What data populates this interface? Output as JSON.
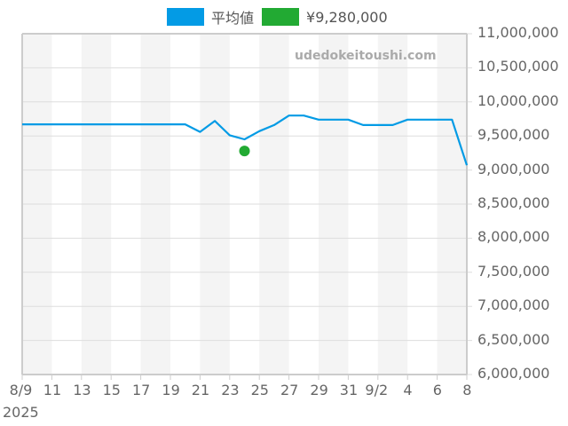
{
  "legend": [
    {
      "label": "平均値",
      "color": "#039be5"
    },
    {
      "label": "¥9,280,000",
      "color": "#22aa33"
    }
  ],
  "watermark": "udedokeitoushi.com",
  "colors": {
    "line": "#039be5",
    "point": "#22aa33",
    "stripe": "#f4f4f4",
    "grid": "#dddddd",
    "axis": "#cccccc"
  },
  "chart_data": {
    "type": "line",
    "title": "",
    "xlabel": "",
    "ylabel": "",
    "year_label": "2025",
    "x_tick_labels": [
      "8/9",
      "11",
      "13",
      "15",
      "17",
      "19",
      "21",
      "23",
      "25",
      "27",
      "29",
      "31",
      "9/2",
      "4",
      "6",
      "8"
    ],
    "y_tick_labels": [
      "11,000,000",
      "10,500,000",
      "10,000,000",
      "9,500,000",
      "9,000,000",
      "8,500,000",
      "8,000,000",
      "7,500,000",
      "7,000,000",
      "6,500,000",
      "6,000,000"
    ],
    "ylim": [
      6000000,
      11000000
    ],
    "grid": true,
    "legend_position": "top",
    "x": [
      "8/9",
      "8/10",
      "8/11",
      "8/12",
      "8/13",
      "8/14",
      "8/15",
      "8/16",
      "8/17",
      "8/18",
      "8/19",
      "8/20",
      "8/21",
      "8/22",
      "8/23",
      "8/24",
      "8/25",
      "8/26",
      "8/27",
      "8/28",
      "8/29",
      "8/30",
      "8/31",
      "9/1",
      "9/2",
      "9/3",
      "9/4",
      "9/5",
      "9/6",
      "9/7",
      "9/8"
    ],
    "series": [
      {
        "name": "平均値",
        "type": "line",
        "values": [
          9670000,
          9670000,
          9670000,
          9670000,
          9670000,
          9670000,
          9670000,
          9670000,
          9670000,
          9670000,
          9670000,
          9670000,
          9560000,
          9720000,
          9510000,
          9450000,
          9570000,
          9660000,
          9800000,
          9800000,
          9740000,
          9740000,
          9740000,
          9660000,
          9660000,
          9660000,
          9740000,
          9740000,
          9740000,
          9740000,
          9070000
        ]
      },
      {
        "name": "¥9,280,000",
        "type": "scatter",
        "points": [
          {
            "x": "8/24",
            "y": 9280000
          }
        ]
      }
    ]
  }
}
